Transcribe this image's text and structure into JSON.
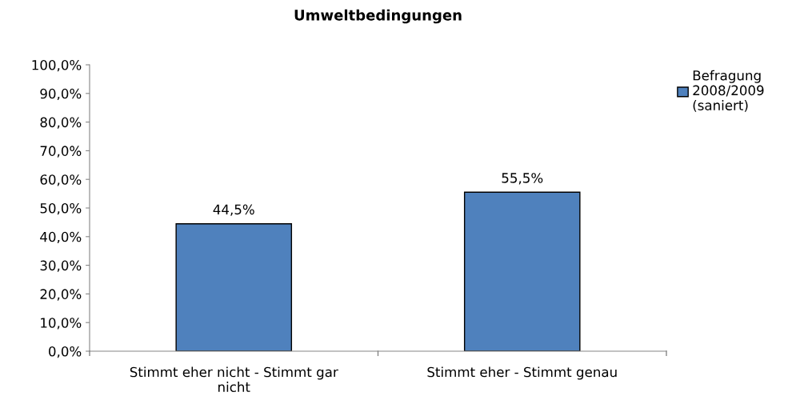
{
  "chart_data": {
    "type": "bar",
    "title": "Umweltbedingungen",
    "categories": [
      "Stimmt eher nicht - Stimmt gar\nnicht",
      "Stimmt eher - Stimmt genau"
    ],
    "series": [
      {
        "name": "Befragung\n2008/2009\n(saniert)",
        "color": "#4f81bd",
        "values": [
          44.5,
          55.5
        ],
        "value_labels": [
          "44,5%",
          "55,5%"
        ]
      }
    ],
    "ylim": [
      0,
      100
    ],
    "yticks": [
      {
        "value": 0,
        "label": "0,0%"
      },
      {
        "value": 10,
        "label": "10,0%"
      },
      {
        "value": 20,
        "label": "20,0%"
      },
      {
        "value": 30,
        "label": "30,0%"
      },
      {
        "value": 40,
        "label": "40,0%"
      },
      {
        "value": 50,
        "label": "50,0%"
      },
      {
        "value": 60,
        "label": "60,0%"
      },
      {
        "value": 70,
        "label": "70,0%"
      },
      {
        "value": 80,
        "label": "80,0%"
      },
      {
        "value": 90,
        "label": "90,0%"
      },
      {
        "value": 100,
        "label": "100,0%"
      }
    ],
    "grid": false,
    "legend": "top right"
  }
}
